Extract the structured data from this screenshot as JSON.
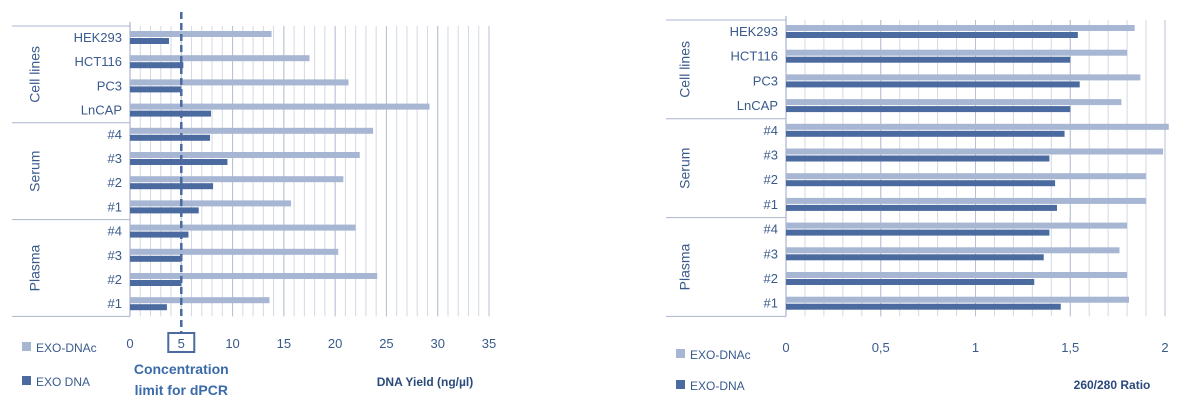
{
  "chart_data": [
    {
      "type": "bar",
      "orientation": "horizontal",
      "xlabel": "DNA Yield (ng/µl)",
      "xlim": [
        0,
        35
      ],
      "xticks": [
        "0",
        "5",
        "10",
        "15",
        "20",
        "25",
        "30",
        "35"
      ],
      "grid": "vertical",
      "legend_placement": "bottom-left",
      "groups": [
        {
          "label": "Cell lines",
          "categories": [
            "HEK293",
            "HCT116",
            "PC3",
            "LnCAP"
          ]
        },
        {
          "label": "Serum",
          "categories": [
            "#4",
            "#3",
            "#2",
            "#1"
          ]
        },
        {
          "label": "Plasma",
          "categories": [
            "#4",
            "#3",
            "#2",
            "#1"
          ]
        }
      ],
      "categories": [
        "HEK293",
        "HCT116",
        "PC3",
        "LnCAP",
        "#4",
        "#3",
        "#2",
        "#1",
        "#4",
        "#3",
        "#2",
        "#1"
      ],
      "series": [
        {
          "name": "EXO-DNAc",
          "color": "#a7b6d2",
          "values": [
            13.8,
            17.5,
            21.3,
            29.2,
            23.7,
            22.4,
            20.8,
            15.7,
            22.0,
            20.3,
            24.1,
            13.6
          ]
        },
        {
          "name": "EXO DNA",
          "color": "#4a6aa0",
          "values": [
            3.8,
            5.2,
            5.0,
            7.9,
            7.8,
            9.5,
            8.1,
            6.7,
            5.7,
            5.0,
            5.0,
            3.6
          ]
        }
      ],
      "reference_line": {
        "value": 5,
        "label_line1": "Concentration",
        "label_line2": "limit for dPCR",
        "box_label": "5"
      }
    },
    {
      "type": "bar",
      "orientation": "horizontal",
      "xlabel": "260/280 Ratio",
      "xlim": [
        0,
        2
      ],
      "xticks": [
        "0",
        "0,5",
        "1",
        "1,5",
        "2"
      ],
      "grid": "vertical",
      "legend_placement": "bottom-left",
      "groups": [
        {
          "label": "Cell lines",
          "categories": [
            "HEK293",
            "HCT116",
            "PC3",
            "LnCAP"
          ]
        },
        {
          "label": "Serum",
          "categories": [
            "#4",
            "#3",
            "#2",
            "#1"
          ]
        },
        {
          "label": "Plasma",
          "categories": [
            "#4",
            "#3",
            "#2",
            "#1"
          ]
        }
      ],
      "categories": [
        "HEK293",
        "HCT116",
        "PC3",
        "LnCAP",
        "#4",
        "#3",
        "#2",
        "#1",
        "#4",
        "#3",
        "#2",
        "#1"
      ],
      "series": [
        {
          "name": "EXO-DNAc",
          "color": "#a7b6d2",
          "values": [
            1.84,
            1.8,
            1.87,
            1.77,
            2.02,
            1.99,
            1.9,
            1.9,
            1.8,
            1.76,
            1.8,
            1.81
          ]
        },
        {
          "name": "EXO-DNA",
          "color": "#4a6aa0",
          "values": [
            1.54,
            1.5,
            1.55,
            1.5,
            1.47,
            1.39,
            1.42,
            1.43,
            1.39,
            1.36,
            1.31,
            1.45
          ]
        }
      ]
    }
  ]
}
